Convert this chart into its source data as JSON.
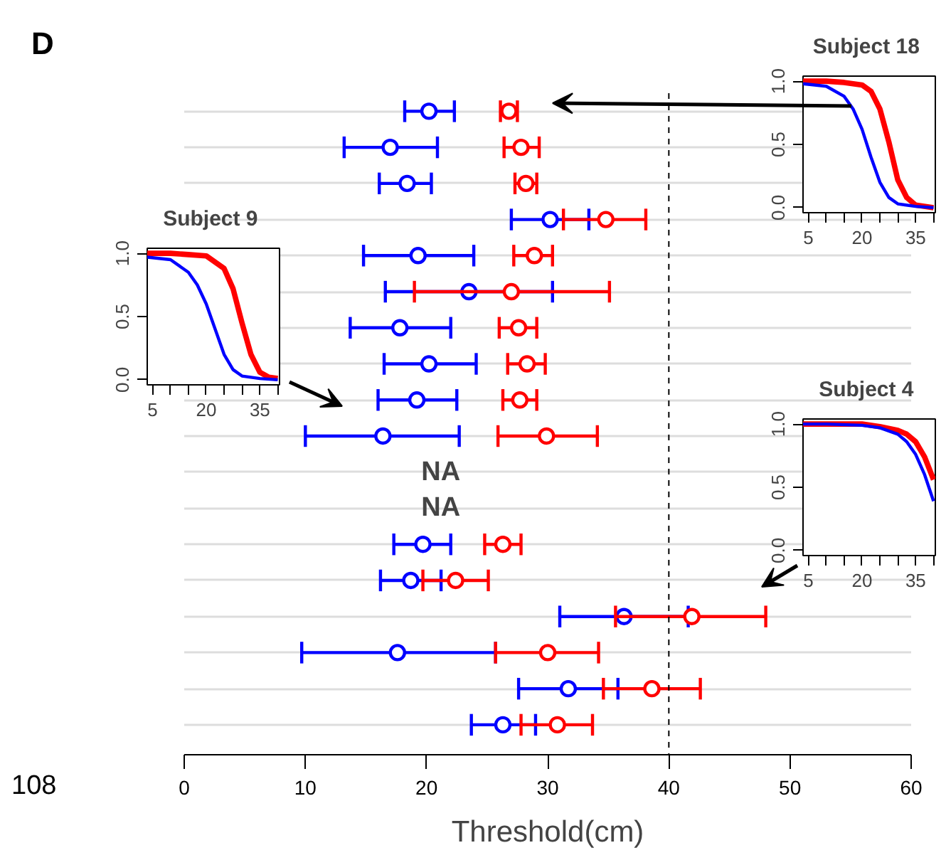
{
  "chart_data": [
    {
      "type": "scatter",
      "orientation": "horizontal",
      "categories": [
        null,
        null,
        null,
        null,
        null,
        null,
        null,
        null,
        null,
        null,
        null,
        null,
        null,
        null,
        null,
        null,
        null,
        null
      ],
      "series": [
        {
          "color": "#0000ff",
          "values": [
            20.2,
            17.0,
            18.4,
            30.2,
            19.3,
            23.5,
            17.8,
            20.2,
            19.2,
            16.4,
            null,
            null,
            19.7,
            18.7,
            36.3,
            17.6,
            31.7,
            26.3
          ],
          "errors": [
            [
              18.2,
              22.3
            ],
            [
              13.2,
              20.9
            ],
            [
              16.1,
              20.4
            ],
            [
              27.0,
              33.4
            ],
            [
              14.8,
              23.9
            ],
            [
              16.6,
              30.4
            ],
            [
              13.7,
              22.0
            ],
            [
              16.5,
              24.1
            ],
            [
              16.0,
              22.5
            ],
            [
              10.0,
              22.7
            ],
            null,
            null,
            [
              17.3,
              22.0
            ],
            [
              16.2,
              21.2
            ],
            [
              31.0,
              41.6
            ],
            [
              9.7,
              25.7
            ],
            [
              27.6,
              35.8
            ],
            [
              23.7,
              29.0
            ]
          ]
        },
        {
          "color": "#ff0000",
          "values": [
            26.8,
            27.8,
            28.2,
            34.8,
            28.9,
            27.0,
            27.6,
            28.3,
            27.7,
            29.9,
            null,
            null,
            26.3,
            22.4,
            41.9,
            30.0,
            38.6,
            30.8
          ],
          "errors": [
            [
              26.1,
              27.5
            ],
            [
              26.4,
              29.3
            ],
            [
              27.3,
              29.1
            ],
            [
              31.3,
              38.1
            ],
            [
              27.2,
              30.4
            ],
            [
              19.0,
              35.1
            ],
            [
              26.0,
              29.1
            ],
            [
              26.7,
              29.8
            ],
            [
              26.3,
              29.1
            ],
            [
              25.9,
              34.1
            ],
            null,
            null,
            [
              24.8,
              27.8
            ],
            [
              19.7,
              25.1
            ],
            [
              35.6,
              48.0
            ],
            [
              25.7,
              34.2
            ],
            [
              34.6,
              42.6
            ],
            [
              27.8,
              33.7
            ]
          ]
        }
      ],
      "xlim": [
        0,
        60
      ],
      "xticks": [
        0,
        10,
        20,
        30,
        40,
        50,
        60
      ],
      "xlabel": "Threshold(cm)",
      "tick_labels": "x",
      "grid": "y",
      "marker": "circle",
      "ref_lines": [
        {
          "axis": "x",
          "value": 40,
          "color": "#000000",
          "line_style": "dashed"
        }
      ],
      "annotations": [
        "D",
        "108",
        "NA",
        "NA"
      ]
    },
    {
      "type": "line",
      "title": "Subject  18",
      "xlim": [
        3.5,
        40.5
      ],
      "ylim": [
        -0.04,
        1.04
      ],
      "xticks": [
        5,
        {
          "value": 10,
          "label": null
        },
        {
          "value": 15,
          "label": null
        },
        20,
        {
          "value": 25,
          "label": null
        },
        {
          "value": 30,
          "label": null
        },
        35,
        {
          "value": 40,
          "label": null
        }
      ],
      "yticks": [
        {
          "value": 0,
          "label": "0.0"
        },
        {
          "value": 0.5,
          "label": "0.5"
        },
        {
          "value": 1,
          "label": "1.0"
        }
      ],
      "series": [
        {
          "color": "#ff0000",
          "x": [
            3.5,
            10,
            15,
            20,
            22.5,
            25,
            27.5,
            30,
            32.5,
            35,
            40
          ],
          "values": [
            1.0,
            1.0,
            0.99,
            0.97,
            0.92,
            0.78,
            0.52,
            0.22,
            0.08,
            0.02,
            0.0
          ]
        },
        {
          "color": "#0000ff",
          "x": [
            3.5,
            10,
            15,
            17.5,
            20,
            22.5,
            25,
            27.5,
            30,
            35,
            40
          ],
          "values": [
            0.98,
            0.96,
            0.88,
            0.78,
            0.62,
            0.4,
            0.2,
            0.08,
            0.03,
            0.01,
            0.0
          ]
        }
      ]
    },
    {
      "type": "line",
      "title": "Subject  9",
      "xlim": [
        3.5,
        40.5
      ],
      "ylim": [
        -0.04,
        1.04
      ],
      "xticks": [
        5,
        {
          "value": 10,
          "label": null
        },
        {
          "value": 15,
          "label": null
        },
        20,
        {
          "value": 25,
          "label": null
        },
        {
          "value": 30,
          "label": null
        },
        35,
        {
          "value": 40,
          "label": null
        }
      ],
      "yticks": [
        {
          "value": 0,
          "label": "0.0"
        },
        {
          "value": 0.5,
          "label": "0.5"
        },
        {
          "value": 1,
          "label": "1.0"
        }
      ],
      "series": [
        {
          "color": "#ff0000",
          "x": [
            3.5,
            10,
            15,
            20,
            25,
            27.5,
            30,
            32.5,
            35,
            37.5,
            40
          ],
          "values": [
            1.0,
            1.0,
            0.99,
            0.98,
            0.88,
            0.72,
            0.45,
            0.2,
            0.06,
            0.02,
            0.01
          ]
        },
        {
          "color": "#0000ff",
          "x": [
            3.5,
            10,
            15,
            17.5,
            20,
            22.5,
            25,
            27.5,
            30,
            35,
            40
          ],
          "values": [
            0.97,
            0.95,
            0.85,
            0.75,
            0.6,
            0.4,
            0.2,
            0.08,
            0.03,
            0.01,
            0.0
          ]
        }
      ]
    },
    {
      "type": "line",
      "title": "Subject  4",
      "xlim": [
        3.5,
        40.5
      ],
      "ylim": [
        -0.04,
        1.04
      ],
      "xticks": [
        5,
        {
          "value": 10,
          "label": null
        },
        {
          "value": 15,
          "label": null
        },
        20,
        {
          "value": 25,
          "label": null
        },
        {
          "value": 30,
          "label": null
        },
        35,
        {
          "value": 40,
          "label": null
        }
      ],
      "yticks": [
        {
          "value": 0,
          "label": "0.0"
        },
        {
          "value": 0.5,
          "label": "0.5"
        },
        {
          "value": 1,
          "label": "1.0"
        }
      ],
      "series": [
        {
          "color": "#ff0000",
          "x": [
            3.5,
            10,
            20,
            25,
            30,
            32.5,
            35,
            37.5,
            40
          ],
          "values": [
            1.0,
            1.0,
            1.0,
            0.98,
            0.95,
            0.92,
            0.86,
            0.74,
            0.56
          ]
        },
        {
          "color": "#0000ff",
          "x": [
            3.5,
            10,
            20,
            25,
            30,
            32.5,
            35,
            37.5,
            40
          ],
          "values": [
            1.0,
            1.0,
            0.99,
            0.97,
            0.92,
            0.86,
            0.76,
            0.6,
            0.39
          ]
        }
      ]
    }
  ]
}
